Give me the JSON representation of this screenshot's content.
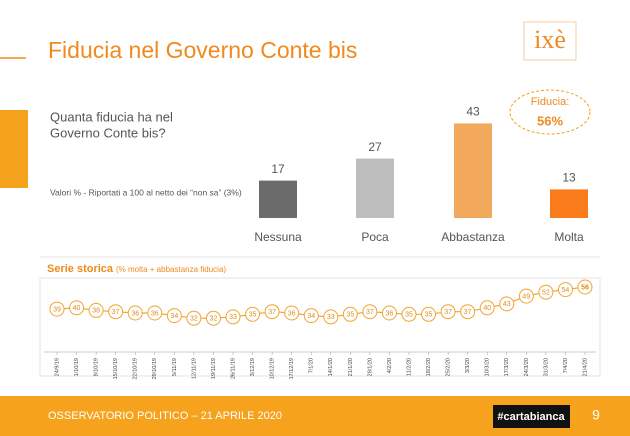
{
  "header": {
    "title": "Fiducia nel Governo Conte bis",
    "logo": "ixè"
  },
  "question_lines": [
    "Quanta fiducia ha nel",
    "Governo Conte bis?"
  ],
  "note": "Valori % - Riportati a 100 al netto dei “non sa” (3%)",
  "chart_data": [
    {
      "type": "bar",
      "categories": [
        "Nessuna",
        "Poca",
        "Abbastanza",
        "Molta"
      ],
      "values": [
        17,
        27,
        43,
        13
      ],
      "colors": [
        "#6b6b6b",
        "#bdbdbd",
        "#f3a95c",
        "#f97b1c"
      ],
      "annotation": {
        "label": "Fiducia:",
        "value_label": "56%"
      }
    },
    {
      "type": "line",
      "title": "Serie storica",
      "subtitle": "(% molta + abbastanza fiducia)",
      "color": "#f2a531",
      "x": [
        "24/9/19",
        "1/10/19",
        "8/10/19",
        "15/10/19",
        "22/10/19",
        "29/10/19",
        "5/11/19",
        "12/11/19",
        "19/11/19",
        "26/11/19",
        "3/12/19",
        "10/12/19",
        "17/12/19",
        "7/1/20",
        "14/1/20",
        "21/1/20",
        "28/1/20",
        "4/2/20",
        "11/2/20",
        "18/2/20",
        "25/2/20",
        "3/3/20",
        "10/3/20",
        "17/3/20",
        "24/3/20",
        "31/3/20",
        "7/4/20",
        "21/4/20"
      ],
      "values": [
        39,
        40,
        38,
        37,
        36,
        36,
        34,
        32,
        32,
        33,
        35,
        37,
        36,
        34,
        33,
        35,
        37,
        36,
        35,
        35,
        37,
        37,
        40,
        43,
        49,
        52,
        54,
        56
      ]
    }
  ],
  "footer": {
    "text": "OSSERVATORIO POLITICO – 21 APRILE 2020",
    "tag": "#cartabianca",
    "page": "9"
  }
}
